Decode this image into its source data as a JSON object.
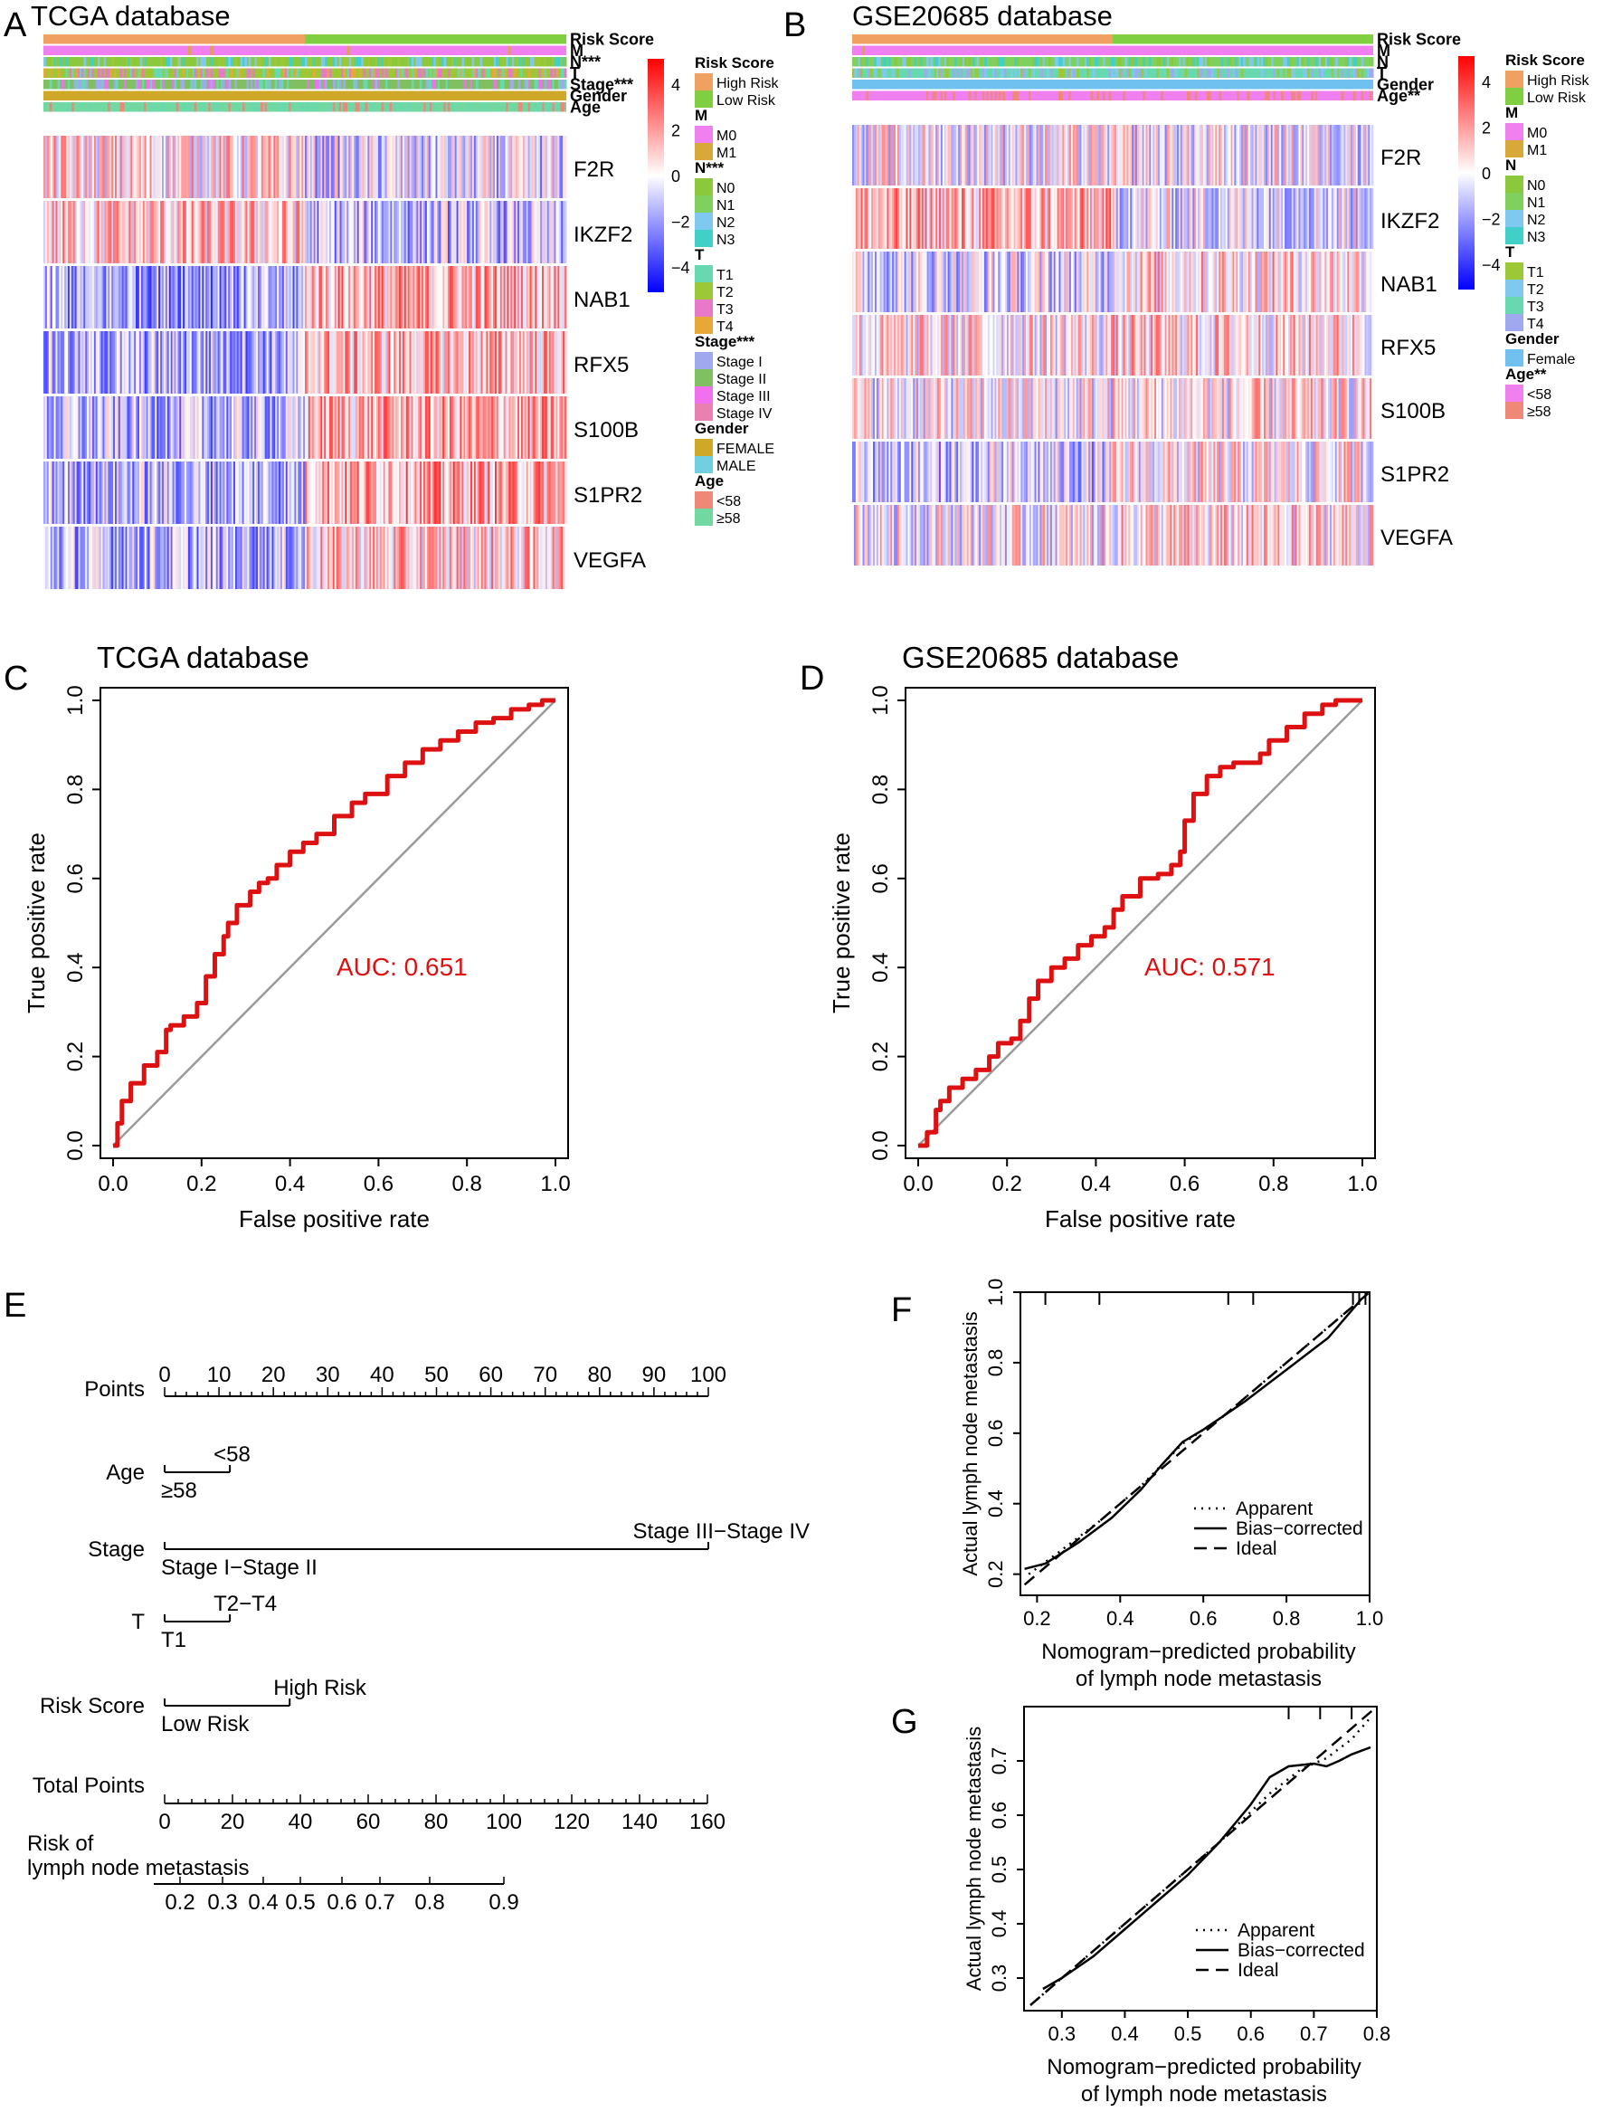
{
  "colors": {
    "high_risk": "#f0a060",
    "low_risk": "#7fcf40",
    "m0": "#f07fef",
    "m1": "#d8a838",
    "n0": "#8cc83c",
    "n1": "#7fd05c",
    "n2": "#7fc8f0",
    "n3": "#40d0c8",
    "t1": "#68d8b0",
    "t2": "#9cc838",
    "t3": "#e878c8",
    "t4": "#e8a838",
    "stage1": "#a0a8f0",
    "stage2": "#80c060",
    "stage3": "#f070f0",
    "stage4": "#e880b0",
    "female_tcga": "#d0a828",
    "male": "#70d0e0",
    "female_gse": "#70c0f0",
    "age_lt58": "#f08878",
    "age_ge58": "#70d8a0",
    "heat_low": "#0000ff",
    "heat_mid": "#ffffff",
    "heat_high": "#ff0000",
    "roc_curve": "#dd1111",
    "diagonal": "#9a9a9a"
  },
  "panels": {
    "A": {
      "letter": "A",
      "title": "TCGA database"
    },
    "B": {
      "letter": "B",
      "title": "GSE20685 database"
    },
    "C": {
      "letter": "C",
      "title": "TCGA database"
    },
    "D": {
      "letter": "D",
      "title": "GSE20685 database"
    },
    "E": {
      "letter": "E"
    },
    "F": {
      "letter": "F"
    },
    "G": {
      "letter": "G"
    }
  },
  "heatmap_A": {
    "annotation_rows": [
      "Risk Score",
      "M",
      "N***",
      "T",
      "Stage***",
      "Gender",
      "Age"
    ],
    "genes": [
      "F2R",
      "IKZF2",
      "NAB1",
      "RFX5",
      "S100B",
      "S1PR2",
      "VEGFA"
    ],
    "scale_ticks": [
      "4",
      "2",
      "0",
      "−2",
      "−4"
    ],
    "legend": [
      {
        "title": "Risk Score",
        "items": [
          {
            "label": "High Risk",
            "color": "high_risk"
          },
          {
            "label": "Low Risk",
            "color": "low_risk"
          }
        ]
      },
      {
        "title": "M",
        "items": [
          {
            "label": "M0",
            "color": "m0"
          },
          {
            "label": "M1",
            "color": "m1"
          }
        ]
      },
      {
        "title": "N***",
        "items": [
          {
            "label": "N0",
            "color": "n0"
          },
          {
            "label": "N1",
            "color": "n1"
          },
          {
            "label": "N2",
            "color": "n2"
          },
          {
            "label": "N3",
            "color": "n3"
          }
        ]
      },
      {
        "title": "T",
        "items": [
          {
            "label": "T1",
            "color": "t1"
          },
          {
            "label": "T2",
            "color": "t2"
          },
          {
            "label": "T3",
            "color": "t3"
          },
          {
            "label": "T4",
            "color": "t4"
          }
        ]
      },
      {
        "title": "Stage***",
        "items": [
          {
            "label": "Stage I",
            "color": "stage1"
          },
          {
            "label": "Stage II",
            "color": "stage2"
          },
          {
            "label": "Stage III",
            "color": "stage3"
          },
          {
            "label": "Stage IV",
            "color": "stage4"
          }
        ]
      },
      {
        "title": "Gender",
        "items": [
          {
            "label": "FEMALE",
            "color": "female_tcga"
          },
          {
            "label": "MALE",
            "color": "male"
          }
        ]
      },
      {
        "title": "Age",
        "items": [
          {
            "label": "<58",
            "color": "age_lt58"
          },
          {
            "label": "≥58",
            "color": "age_ge58"
          }
        ]
      }
    ]
  },
  "heatmap_B": {
    "annotation_rows": [
      "Risk Score",
      "M",
      "N",
      "T",
      "Gender",
      "Age**"
    ],
    "genes": [
      "F2R",
      "IKZF2",
      "NAB1",
      "RFX5",
      "S100B",
      "S1PR2",
      "VEGFA"
    ],
    "scale_ticks": [
      "4",
      "2",
      "0",
      "−2",
      "−4"
    ],
    "legend": [
      {
        "title": "Risk Score",
        "items": [
          {
            "label": "High Risk",
            "color": "high_risk"
          },
          {
            "label": "Low Risk",
            "color": "low_risk"
          }
        ]
      },
      {
        "title": "M",
        "items": [
          {
            "label": "M0",
            "color": "m0"
          },
          {
            "label": "M1",
            "color": "m1"
          }
        ]
      },
      {
        "title": "N",
        "items": [
          {
            "label": "N0",
            "color": "n0"
          },
          {
            "label": "N1",
            "color": "n1"
          },
          {
            "label": "N2",
            "color": "n2"
          },
          {
            "label": "N3",
            "color": "n3"
          }
        ]
      },
      {
        "title": "T",
        "items": [
          {
            "label": "T1",
            "color": "t2"
          },
          {
            "label": "T2",
            "color": "n2"
          },
          {
            "label": "T3",
            "color": "t1"
          },
          {
            "label": "T4",
            "color": "stage1"
          }
        ]
      },
      {
        "title": "Gender",
        "items": [
          {
            "label": "Female",
            "color": "female_gse"
          }
        ]
      },
      {
        "title": "Age**",
        "items": [
          {
            "label": "<58",
            "color": "m0"
          },
          {
            "label": "≥58",
            "color": "age_lt58"
          }
        ]
      }
    ]
  },
  "chart_data": [
    {
      "type": "line",
      "panel": "C",
      "title": "TCGA database",
      "xlabel": "False positive rate",
      "ylabel": "True positive rate",
      "xlim": [
        0,
        1
      ],
      "ylim": [
        0,
        1
      ],
      "xticks": [
        "0.0",
        "0.2",
        "0.4",
        "0.6",
        "0.8",
        "1.0"
      ],
      "yticks": [
        "0.0",
        "0.2",
        "0.4",
        "0.6",
        "0.8",
        "1.0"
      ],
      "annotation": "AUC: 0.651",
      "series": [
        {
          "name": "ROC",
          "x": [
            0.0,
            0.01,
            0.02,
            0.04,
            0.07,
            0.1,
            0.12,
            0.13,
            0.16,
            0.19,
            0.21,
            0.23,
            0.25,
            0.26,
            0.28,
            0.31,
            0.33,
            0.35,
            0.37,
            0.4,
            0.43,
            0.46,
            0.5,
            0.54,
            0.57,
            0.62,
            0.66,
            0.7,
            0.74,
            0.78,
            0.82,
            0.86,
            0.9,
            0.94,
            0.97,
            1.0
          ],
          "y": [
            0.0,
            0.05,
            0.1,
            0.14,
            0.18,
            0.21,
            0.26,
            0.27,
            0.29,
            0.32,
            0.38,
            0.43,
            0.47,
            0.5,
            0.54,
            0.57,
            0.59,
            0.6,
            0.63,
            0.66,
            0.68,
            0.7,
            0.74,
            0.77,
            0.79,
            0.83,
            0.86,
            0.89,
            0.91,
            0.93,
            0.95,
            0.96,
            0.98,
            0.99,
            1.0,
            1.0
          ]
        },
        {
          "name": "reference",
          "x": [
            0,
            1
          ],
          "y": [
            0,
            1
          ]
        }
      ]
    },
    {
      "type": "line",
      "panel": "D",
      "title": "GSE20685 database",
      "xlabel": "False positive rate",
      "ylabel": "True positive rate",
      "xlim": [
        0,
        1
      ],
      "ylim": [
        0,
        1
      ],
      "xticks": [
        "0.0",
        "0.2",
        "0.4",
        "0.6",
        "0.8",
        "1.0"
      ],
      "yticks": [
        "0.0",
        "0.2",
        "0.4",
        "0.6",
        "0.8",
        "1.0"
      ],
      "annotation": "AUC: 0.571",
      "series": [
        {
          "name": "ROC",
          "x": [
            0.0,
            0.02,
            0.04,
            0.05,
            0.07,
            0.1,
            0.13,
            0.16,
            0.18,
            0.21,
            0.23,
            0.25,
            0.27,
            0.3,
            0.33,
            0.36,
            0.39,
            0.42,
            0.44,
            0.46,
            0.5,
            0.54,
            0.57,
            0.59,
            0.6,
            0.62,
            0.65,
            0.68,
            0.71,
            0.75,
            0.77,
            0.79,
            0.83,
            0.87,
            0.91,
            0.94,
            0.97,
            1.0
          ],
          "y": [
            0.0,
            0.03,
            0.08,
            0.1,
            0.13,
            0.15,
            0.17,
            0.2,
            0.23,
            0.24,
            0.28,
            0.33,
            0.37,
            0.4,
            0.42,
            0.45,
            0.47,
            0.49,
            0.53,
            0.56,
            0.6,
            0.61,
            0.63,
            0.66,
            0.73,
            0.79,
            0.83,
            0.85,
            0.86,
            0.86,
            0.88,
            0.91,
            0.94,
            0.97,
            0.99,
            1.0,
            1.0,
            1.0
          ]
        },
        {
          "name": "reference",
          "x": [
            0,
            1
          ],
          "y": [
            0,
            1
          ]
        }
      ]
    },
    {
      "type": "line",
      "panel": "F",
      "xlabel": "Nomogram−predicted probability",
      "xlabel2": "of lymph node metastasis",
      "ylabel": "Actual lymph node metastasis",
      "xlim": [
        0.16,
        1.0
      ],
      "ylim": [
        0.14,
        1.0
      ],
      "xticks": [
        "0.2",
        "0.4",
        "0.6",
        "0.8",
        "1.0"
      ],
      "yticks": [
        "0.2",
        "0.4",
        "0.6",
        "0.8",
        "1.0"
      ],
      "legend": [
        "Apparent",
        "Bias−corrected",
        "Ideal"
      ],
      "series": [
        {
          "name": "Ideal",
          "x": [
            0.17,
            1.0
          ],
          "y": [
            0.17,
            1.0
          ]
        },
        {
          "name": "Apparent",
          "x": [
            0.18,
            0.25,
            0.35,
            0.45,
            0.55,
            0.65,
            0.75,
            0.85,
            0.97
          ],
          "y": [
            0.2,
            0.26,
            0.35,
            0.45,
            0.57,
            0.65,
            0.75,
            0.85,
            0.97
          ]
        },
        {
          "name": "Bias−corrected",
          "x": [
            0.17,
            0.22,
            0.3,
            0.38,
            0.45,
            0.5,
            0.55,
            0.6,
            0.7,
            0.8,
            0.9,
            0.98
          ],
          "y": [
            0.215,
            0.23,
            0.29,
            0.36,
            0.44,
            0.51,
            0.575,
            0.61,
            0.69,
            0.78,
            0.87,
            0.98
          ]
        }
      ]
    },
    {
      "type": "line",
      "panel": "G",
      "xlabel": "Nomogram−predicted probability",
      "xlabel2": "of lymph node metastasis",
      "ylabel": "Actual lymph node metastasis",
      "xlim": [
        0.24,
        0.8
      ],
      "ylim": [
        0.24,
        0.8
      ],
      "xticks": [
        "0.3",
        "0.4",
        "0.5",
        "0.6",
        "0.7",
        "0.8"
      ],
      "yticks": [
        "0.3",
        "0.4",
        "0.5",
        "0.6",
        "0.7"
      ],
      "legend": [
        "Apparent",
        "Bias−corrected",
        "Ideal"
      ],
      "series": [
        {
          "name": "Ideal",
          "x": [
            0.25,
            0.8
          ],
          "y": [
            0.25,
            0.8
          ]
        },
        {
          "name": "Apparent",
          "x": [
            0.26,
            0.35,
            0.45,
            0.55,
            0.63,
            0.68,
            0.72,
            0.76,
            0.79
          ],
          "y": [
            0.26,
            0.35,
            0.45,
            0.55,
            0.64,
            0.685,
            0.705,
            0.74,
            0.78
          ]
        },
        {
          "name": "Bias−corrected",
          "x": [
            0.27,
            0.3,
            0.35,
            0.4,
            0.45,
            0.5,
            0.55,
            0.6,
            0.63,
            0.66,
            0.7,
            0.72,
            0.74,
            0.76,
            0.79
          ],
          "y": [
            0.28,
            0.3,
            0.34,
            0.39,
            0.44,
            0.49,
            0.55,
            0.62,
            0.67,
            0.69,
            0.695,
            0.69,
            0.7,
            0.712,
            0.725
          ]
        }
      ]
    }
  ],
  "nomogram": {
    "rows": [
      {
        "label": "Points",
        "scale_ticks": [
          "0",
          "10",
          "20",
          "30",
          "40",
          "50",
          "60",
          "70",
          "80",
          "90",
          "100"
        ],
        "scale_values": [
          0,
          10,
          20,
          30,
          40,
          50,
          60,
          70,
          80,
          90,
          100
        ],
        "min": 0,
        "max": 100
      },
      {
        "label": "Age",
        "points": [
          {
            "name": "<58",
            "value": 12,
            "pos": "above"
          },
          {
            "name": "≥58",
            "value": 0,
            "pos": "below"
          }
        ]
      },
      {
        "label": "Stage",
        "points": [
          {
            "name": "Stage III−Stage IV",
            "value": 100,
            "pos": "above"
          },
          {
            "name": "Stage I−Stage II",
            "value": 0,
            "pos": "below"
          }
        ]
      },
      {
        "label": "T",
        "points": [
          {
            "name": "T2−T4",
            "value": 12,
            "pos": "above"
          },
          {
            "name": "T1",
            "value": 0,
            "pos": "below"
          }
        ]
      },
      {
        "label": "Risk Score",
        "points": [
          {
            "name": "High Risk",
            "value": 23,
            "pos": "above"
          },
          {
            "name": "Low Risk",
            "value": 0,
            "pos": "below"
          }
        ]
      },
      {
        "label": "Total Points",
        "scale_ticks": [
          "0",
          "20",
          "40",
          "60",
          "80",
          "100",
          "120",
          "140",
          "160"
        ],
        "scale_values": [
          0,
          20,
          40,
          60,
          80,
          100,
          120,
          140,
          160
        ],
        "min": 0,
        "max": 160
      },
      {
        "label": "Risk of",
        "label2": "lymph node metastasis",
        "scale_ticks": [
          "0.2",
          "0.3",
          "0.4",
          "0.5",
          "0.6",
          "0.7",
          "0.8",
          "0.9"
        ],
        "scale_values": [
          0.2,
          0.3,
          0.4,
          0.5,
          0.6,
          0.7,
          0.8,
          0.9
        ]
      }
    ]
  }
}
